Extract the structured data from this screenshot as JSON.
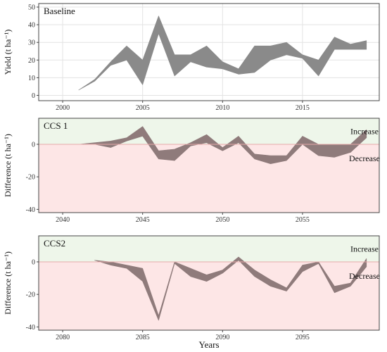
{
  "figure": {
    "xlabel": "Years"
  },
  "colors": {
    "band": "#8a8a8a",
    "band_red": "#8f7b7b",
    "increase_bg": "#eef6ea",
    "decrease_bg": "#fde6e6",
    "zero_line": "#e7a9a9",
    "grid": "#e3e3e3",
    "frame": "#444444"
  },
  "chart_data": [
    {
      "type": "area",
      "panel": "Baseline",
      "title": "Baseline",
      "ylabel": "Yield (t ha⁻¹)",
      "xlabel": "",
      "xlim": [
        1998.5,
        2019.8
      ],
      "ylim": [
        -3,
        52
      ],
      "xticks": [
        2000,
        2005,
        2010,
        2015
      ],
      "yticks": [
        0,
        10,
        20,
        30,
        40,
        50
      ],
      "grid": true,
      "series": [
        {
          "x": [
            2001,
            2002,
            2003,
            2004,
            2005,
            2006,
            2007,
            2008,
            2009,
            2010,
            2011,
            2012,
            2013,
            2014,
            2015,
            2016,
            2017,
            2018,
            2019
          ],
          "lower": [
            3,
            8,
            17,
            20,
            6,
            35,
            11,
            19,
            16,
            15,
            12,
            13,
            20,
            23,
            21,
            11,
            26,
            26,
            26
          ],
          "upper": [
            3,
            9,
            19,
            28,
            20,
            45,
            23,
            23,
            28,
            19,
            15,
            28,
            28,
            30,
            23,
            20,
            33,
            29,
            31
          ]
        }
      ]
    },
    {
      "type": "area",
      "panel": "CCS 1",
      "title": "CCS 1",
      "ylabel": "Difference (t ha⁻¹)",
      "xlabel": "",
      "xlim": [
        2038.5,
        2059.8
      ],
      "ylim": [
        -42,
        16
      ],
      "xticks": [
        2040,
        2045,
        2050,
        2055
      ],
      "yticks": [
        -40,
        -20,
        0
      ],
      "zones": [
        "Increase",
        "Decrease"
      ],
      "series": [
        {
          "x": [
            2041,
            2042,
            2043,
            2044,
            2045,
            2046,
            2047,
            2048,
            2049,
            2050,
            2051,
            2052,
            2053,
            2054,
            2055,
            2056,
            2057,
            2058,
            2059
          ],
          "lower": [
            0,
            0,
            -2,
            2,
            5,
            -9,
            -10,
            -1,
            1,
            -4,
            1,
            -9,
            -12,
            -10,
            0,
            -7,
            -8,
            -5,
            4
          ],
          "upper": [
            0,
            1,
            2,
            4,
            11,
            -4,
            -3,
            1,
            6,
            -2,
            5,
            -6,
            -7,
            -7,
            5,
            0,
            0,
            0,
            9
          ]
        }
      ]
    },
    {
      "type": "area",
      "panel": "CCS2",
      "title": "CCS2",
      "ylabel": "Difference (t ha⁻¹)",
      "xlabel": "Years",
      "xlim": [
        2078.5,
        2099.8
      ],
      "ylim": [
        -42,
        16
      ],
      "xticks": [
        2080,
        2085,
        2090,
        2095
      ],
      "yticks": [
        -40,
        -20,
        0
      ],
      "zones": [
        "Increase",
        "Decrease"
      ],
      "series": [
        {
          "x": [
            2082,
            2083,
            2084,
            2085,
            2086,
            2087,
            2088,
            2089,
            2090,
            2091,
            2092,
            2093,
            2094,
            2095,
            2096,
            2097,
            2098,
            2099
          ],
          "lower": [
            1,
            -2,
            -4,
            -12,
            -36,
            -1,
            -9,
            -12,
            -7,
            1,
            -9,
            -15,
            -18,
            -6,
            -1,
            -19,
            -15,
            -3
          ],
          "upper": [
            1,
            0,
            -2,
            -4,
            -33,
            0,
            -4,
            -8,
            -5,
            3,
            -5,
            -11,
            -16,
            -2,
            0,
            -15,
            -13,
            2
          ]
        }
      ]
    }
  ]
}
